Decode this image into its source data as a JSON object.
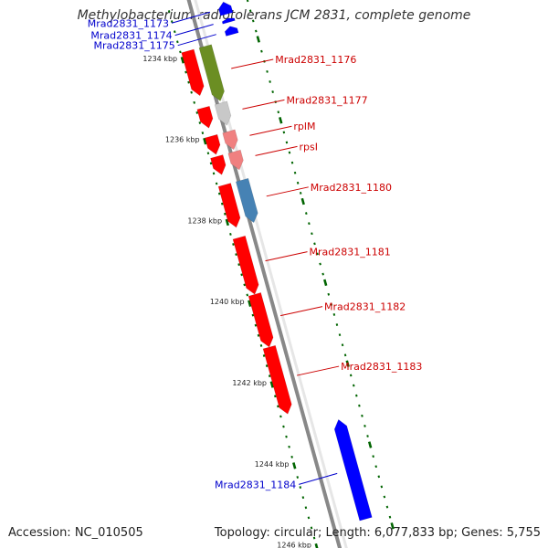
{
  "title": "Methylobacterium radiotolerans JCM 2831, complete genome",
  "footer": {
    "accession": "Accession: NC_010505",
    "summary": "Topology: circular; Length: 6,077,833 bp; Genes: 5,755"
  },
  "colors": {
    "reverse": "#ff0000",
    "forward": "#0000ff",
    "green": "#6b8e23",
    "grey": "#c8c8c8",
    "pink": "#f08080",
    "steel": "#4682b4",
    "backbone": "#888888",
    "tick": "#006400",
    "label_forward": "#0000cc",
    "label_reverse": "#cc0000"
  },
  "chart_data": {
    "type": "linear-genome-map",
    "unit": "kbp",
    "view_range_kbp": [
      1232.8,
      1246.4
    ],
    "ticks_kbp": [
      1234,
      1236,
      1238,
      1240,
      1242,
      1244,
      1246
    ],
    "tick_labels": [
      "1234 kbp",
      "1236 kbp",
      "1238 kbp",
      "1240 kbp",
      "1242 kbp",
      "1244 kbp",
      "1246 kbp"
    ],
    "features": [
      {
        "label": "Mrad2831_1173",
        "strand": "+",
        "start_kbp": 1233.0,
        "end_kbp": 1233.3,
        "track": 1,
        "color": "#0000ff"
      },
      {
        "label": "Mrad2831_1174",
        "strand": "+",
        "start_kbp": 1233.4,
        "end_kbp": 1233.5,
        "track": 1,
        "color": "#0000ff"
      },
      {
        "label": "Mrad2831_1175",
        "strand": "+",
        "start_kbp": 1233.6,
        "end_kbp": 1233.8,
        "track": 1,
        "color": "#0000ff"
      },
      {
        "label": "",
        "strand": "-",
        "start_kbp": 1233.9,
        "end_kbp": 1235.0,
        "track": 1,
        "color": "#ff0000"
      },
      {
        "label": "Mrad2831_1176",
        "strand": "-",
        "start_kbp": 1233.9,
        "end_kbp": 1235.25,
        "track": 2,
        "color": "#6b8e23"
      },
      {
        "label": "",
        "strand": "-",
        "start_kbp": 1235.3,
        "end_kbp": 1235.8,
        "track": 1,
        "color": "#ff0000"
      },
      {
        "label": "Mrad2831_1177",
        "strand": "-",
        "start_kbp": 1235.3,
        "end_kbp": 1235.85,
        "track": 2,
        "color": "#c8c8c8"
      },
      {
        "label": "",
        "strand": "-",
        "start_kbp": 1236.0,
        "end_kbp": 1236.45,
        "track": 1,
        "color": "#ff0000"
      },
      {
        "label": "rplM",
        "strand": "-",
        "start_kbp": 1236.0,
        "end_kbp": 1236.45,
        "track": 2,
        "color": "#f08080"
      },
      {
        "label": "",
        "strand": "-",
        "start_kbp": 1236.5,
        "end_kbp": 1236.95,
        "track": 1,
        "color": "#ff0000"
      },
      {
        "label": "rpsI",
        "strand": "-",
        "start_kbp": 1236.5,
        "end_kbp": 1236.95,
        "track": 2,
        "color": "#f08080"
      },
      {
        "label": "",
        "strand": "-",
        "start_kbp": 1237.2,
        "end_kbp": 1238.25,
        "track": 1,
        "color": "#ff0000"
      },
      {
        "label": "Mrad2831_1180",
        "strand": "-",
        "start_kbp": 1237.2,
        "end_kbp": 1238.25,
        "track": 2,
        "color": "#4682b4"
      },
      {
        "label": "Mrad2831_1181",
        "strand": "-",
        "start_kbp": 1238.5,
        "end_kbp": 1239.9,
        "track": 1,
        "color": "#ff0000"
      },
      {
        "label": "Mrad2831_1182",
        "strand": "-",
        "start_kbp": 1239.9,
        "end_kbp": 1241.2,
        "track": 1,
        "color": "#ff0000"
      },
      {
        "label": "Mrad2831_1183",
        "strand": "-",
        "start_kbp": 1241.2,
        "end_kbp": 1242.85,
        "track": 1,
        "color": "#ff0000"
      },
      {
        "label": "Mrad2831_1184",
        "strand": "+",
        "start_kbp": 1243.3,
        "end_kbp": 1245.75,
        "track": 1,
        "color": "#0000ff"
      }
    ]
  }
}
